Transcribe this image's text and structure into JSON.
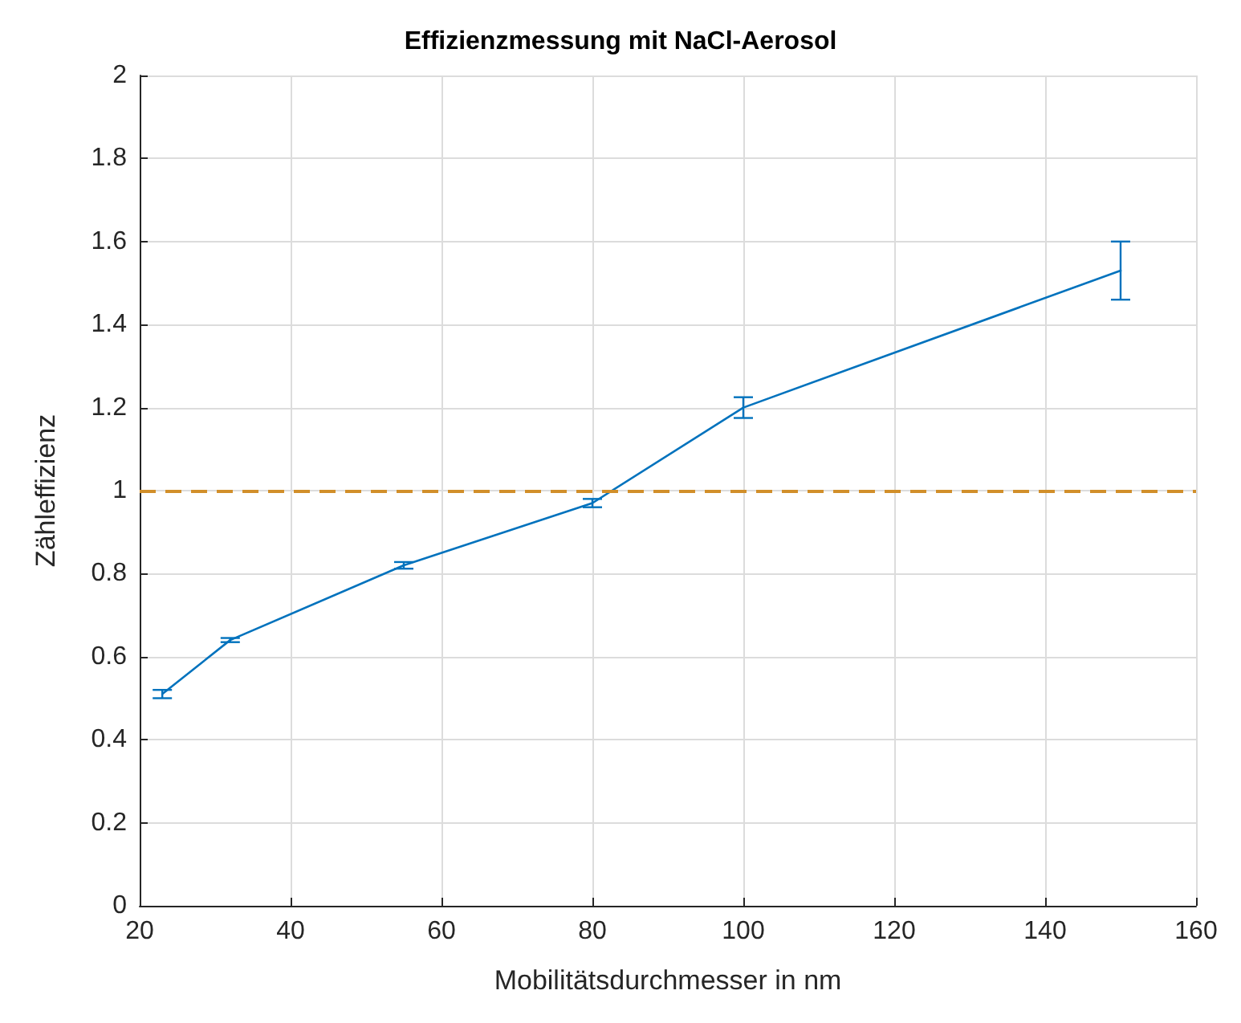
{
  "chart_data": {
    "type": "line",
    "title": "Effizienzmessung mit NaCl-Aerosol",
    "xlabel": "Mobilitätsdurchmesser in nm",
    "ylabel": "Zähleffizienz",
    "x": [
      23,
      32,
      55,
      80,
      100,
      150
    ],
    "series": [
      {
        "color": "#0072bd",
        "values": [
          0.51,
          0.64,
          0.82,
          0.97,
          1.2,
          1.53
        ],
        "errors": [
          0.01,
          0.005,
          0.008,
          0.01,
          0.025,
          0.07
        ]
      }
    ],
    "xlim": [
      20,
      160
    ],
    "xticks": [
      20,
      40,
      60,
      80,
      100,
      120,
      140,
      160
    ],
    "ylim": [
      0,
      2
    ],
    "yticks": [
      0,
      0.2,
      0.4,
      0.6,
      0.8,
      1,
      1.2,
      1.4,
      1.6,
      1.8,
      2
    ],
    "ref_lines": [
      {
        "axis": "y",
        "value": 1,
        "color": "#d18f2a",
        "line_style": "dashed"
      }
    ],
    "grid": true,
    "marker": "none",
    "line_style": "solid"
  }
}
